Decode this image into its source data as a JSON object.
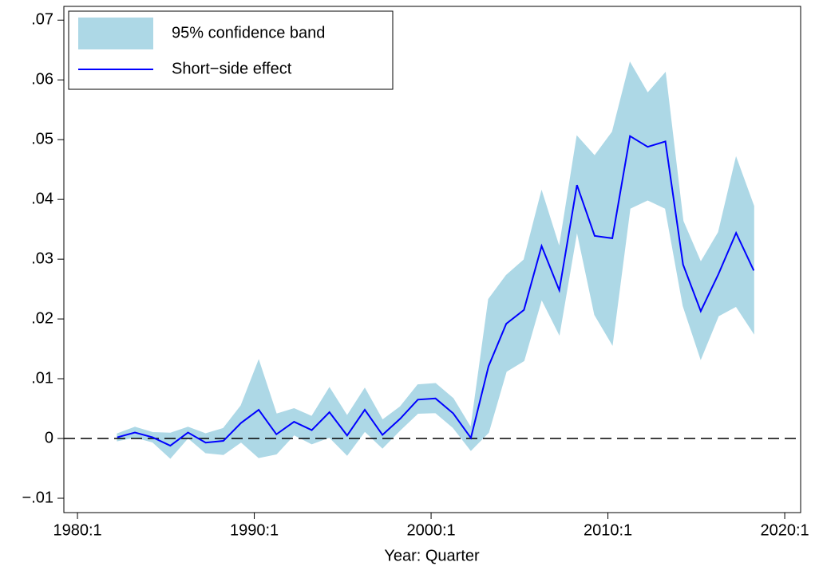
{
  "chart_data": {
    "type": "band-line",
    "x_label": "Year: Quarter",
    "x": [
      1982.25,
      1983.25,
      1984.25,
      1985.25,
      1986.25,
      1987.25,
      1988.25,
      1989.25,
      1990.25,
      1991.25,
      1992.25,
      1993.25,
      1994.25,
      1995.25,
      1996.25,
      1997.25,
      1998.25,
      1999.25,
      2000.25,
      2001.25,
      2002.25,
      2003.25,
      2004.25,
      2005.25,
      2006.25,
      2007.25,
      2008.25,
      2009.25,
      2010.25,
      2011.25,
      2012.25,
      2013.25,
      2014.25,
      2015.25,
      2016.25,
      2017.25,
      2018.25
    ],
    "series": [
      {
        "name": "95% confidence band",
        "color": "#add8e6",
        "upper": [
          0.0008,
          0.0019,
          0.001,
          0.0009,
          0.0019,
          0.0008,
          0.0017,
          0.0055,
          0.0131,
          0.0041,
          0.005,
          0.0037,
          0.0085,
          0.0038,
          0.0084,
          0.0031,
          0.0053,
          0.009,
          0.0092,
          0.0067,
          0.0018,
          0.0233,
          0.0273,
          0.0299,
          0.0414,
          0.032,
          0.0506,
          0.0473,
          0.0513,
          0.0629,
          0.0578,
          0.0612,
          0.0364,
          0.0295,
          0.0345,
          0.047,
          0.0389
        ],
        "lower": [
          -0.0004,
          0.0002,
          -0.0006,
          -0.0033,
          0.0001,
          -0.0024,
          -0.0027,
          -0.0006,
          -0.0032,
          -0.0026,
          0.0006,
          -0.0009,
          0.0002,
          -0.0028,
          0.0012,
          -0.0016,
          0.0014,
          0.0042,
          0.0043,
          0.0018,
          -0.002,
          0.001,
          0.0112,
          0.013,
          0.0233,
          0.0174,
          0.0347,
          0.0207,
          0.0157,
          0.0385,
          0.0399,
          0.0385,
          0.0222,
          0.0133,
          0.0205,
          0.0221,
          0.0176
        ]
      },
      {
        "name": "Short−side effect",
        "color": "#0000ff",
        "values": [
          0.0002,
          0.001,
          0.0002,
          -0.0012,
          0.001,
          -0.0007,
          -0.0004,
          0.0026,
          0.0048,
          0.0007,
          0.0028,
          0.0014,
          0.0044,
          0.0005,
          0.0048,
          0.0006,
          0.0033,
          0.0065,
          0.0067,
          0.0042,
          0.0001,
          0.0121,
          0.0192,
          0.0215,
          0.0322,
          0.0248,
          0.0424,
          0.0339,
          0.0335,
          0.0506,
          0.0488,
          0.0497,
          0.0291,
          0.0213,
          0.0275,
          0.0344,
          0.0281
        ]
      }
    ],
    "reference_line": 0,
    "xlim": [
      1979.23,
      2020.9
    ],
    "xticks": [
      {
        "value": 1980,
        "label": "1980:1"
      },
      {
        "value": 1990,
        "label": "1990:1"
      },
      {
        "value": 2000,
        "label": "2000:1"
      },
      {
        "value": 2010,
        "label": "2010:1"
      },
      {
        "value": 2020,
        "label": "2020:1"
      }
    ],
    "ylim": [
      -0.0124,
      0.0723
    ],
    "yticks": [
      {
        "value": -0.01,
        "label": "−.01"
      },
      0,
      {
        "value": 0.01,
        "label": ".01"
      },
      {
        "value": 0.02,
        "label": ".02"
      },
      {
        "value": 0.03,
        "label": ".03"
      },
      {
        "value": 0.04,
        "label": ".04"
      },
      {
        "value": 0.05,
        "label": ".05"
      },
      {
        "value": 0.06,
        "label": ".06"
      },
      {
        "value": 0.07,
        "label": ".07"
      }
    ],
    "legend": "upper left"
  }
}
